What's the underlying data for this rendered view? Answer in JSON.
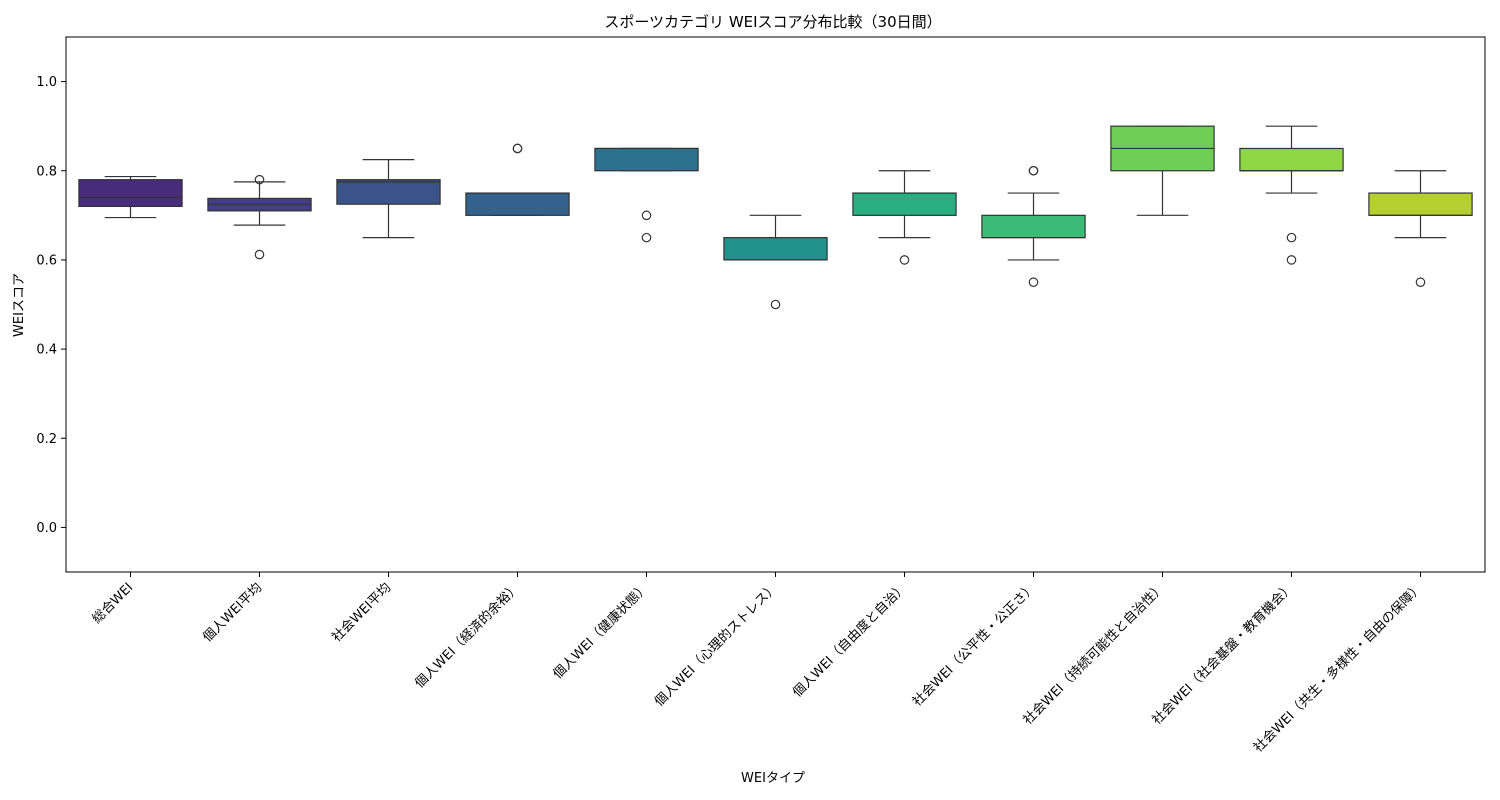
{
  "chart_data": {
    "type": "box",
    "title": "スポーツカテゴリ WEIスコア分布比較（30日間）",
    "xlabel": "WEIタイプ",
    "ylabel": "WEIスコア",
    "ylim": [
      -0.1,
      1.1
    ],
    "yticks": [
      0.0,
      0.2,
      0.4,
      0.6,
      0.8,
      1.0
    ],
    "ytick_labels": [
      "0.0",
      "0.2",
      "0.4",
      "0.6",
      "0.8",
      "1.0"
    ],
    "grid": false,
    "legend": "none",
    "categories": [
      "総合WEI",
      "個人WEI平均",
      "社会WEI平均",
      "個人WEI（経済的余裕）",
      "個人WEI（健康状態）",
      "個人WEI（心理的ストレス）",
      "個人WEI（自由度と自治）",
      "社会WEI（公平性・公正さ）",
      "社会WEI（持続可能性と自治性）",
      "社会WEI（社会基盤・教育機会）",
      "社会WEI（共生・多様性・自由の保障）"
    ],
    "boxes": [
      {
        "whisker_low": 0.695,
        "q1": 0.72,
        "median": 0.74,
        "q3": 0.78,
        "whisker_high": 0.787,
        "outliers": [],
        "color": "#472d7b"
      },
      {
        "whisker_low": 0.678,
        "q1": 0.71,
        "median": 0.725,
        "q3": 0.738,
        "whisker_high": 0.775,
        "outliers": [
          0.78,
          0.612
        ],
        "color": "#433e85"
      },
      {
        "whisker_low": 0.65,
        "q1": 0.725,
        "median": 0.775,
        "q3": 0.78,
        "whisker_high": 0.825,
        "outliers": [],
        "color": "#3b528b"
      },
      {
        "whisker_low": 0.7,
        "q1": 0.7,
        "median": 0.75,
        "q3": 0.75,
        "whisker_high": 0.75,
        "outliers": [
          0.85,
          0.85
        ],
        "color": "#33638d"
      },
      {
        "whisker_low": 0.8,
        "q1": 0.8,
        "median": 0.85,
        "q3": 0.85,
        "whisker_high": 0.85,
        "outliers": [
          0.7,
          0.65
        ],
        "color": "#2c728e"
      },
      {
        "whisker_low": 0.6,
        "q1": 0.6,
        "median": 0.6,
        "q3": 0.65,
        "whisker_high": 0.7,
        "outliers": [
          0.5
        ],
        "color": "#21918c"
      },
      {
        "whisker_low": 0.65,
        "q1": 0.7,
        "median": 0.75,
        "q3": 0.75,
        "whisker_high": 0.8,
        "outliers": [
          0.6
        ],
        "color": "#28ae80"
      },
      {
        "whisker_low": 0.6,
        "q1": 0.65,
        "median": 0.65,
        "q3": 0.7,
        "whisker_high": 0.75,
        "outliers": [
          0.8,
          0.8,
          0.55
        ],
        "color": "#3bbb75"
      },
      {
        "whisker_low": 0.7,
        "q1": 0.8,
        "median": 0.85,
        "q3": 0.9,
        "whisker_high": 0.9,
        "outliers": [],
        "color": "#6ece58"
      },
      {
        "whisker_low": 0.75,
        "q1": 0.8,
        "median": 0.8,
        "q3": 0.85,
        "whisker_high": 0.9,
        "outliers": [
          0.65,
          0.6
        ],
        "color": "#8fd744"
      },
      {
        "whisker_low": 0.65,
        "q1": 0.7,
        "median": 0.7,
        "q3": 0.75,
        "whisker_high": 0.8,
        "outliers": [
          0.55
        ],
        "color": "#b5cf31"
      }
    ]
  }
}
